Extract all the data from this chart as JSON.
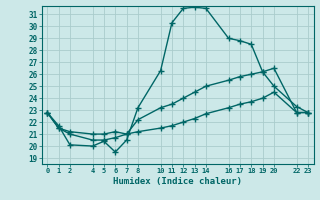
{
  "xlabel": "Humidex (Indice chaleur)",
  "bg_color": "#cce8e8",
  "grid_color": "#aacccc",
  "line_color": "#006666",
  "xlim": [
    -0.5,
    23.5
  ],
  "ylim": [
    18.5,
    31.7
  ],
  "yticks": [
    19,
    20,
    21,
    22,
    23,
    24,
    25,
    26,
    27,
    28,
    29,
    30,
    31
  ],
  "xticks": [
    0,
    1,
    2,
    4,
    5,
    6,
    7,
    8,
    10,
    11,
    12,
    13,
    14,
    16,
    17,
    18,
    19,
    20,
    22,
    23
  ],
  "xtick_labels": [
    "0",
    "1",
    "2",
    "4",
    "5",
    "6",
    "7",
    "8",
    "10",
    "11",
    "12",
    "13",
    "14",
    "16",
    "17",
    "18",
    "19",
    "20",
    "22",
    "23"
  ],
  "line1_x": [
    0,
    1,
    2,
    4,
    5,
    6,
    7,
    8,
    10,
    11,
    12,
    13,
    14,
    16,
    17,
    18,
    19,
    20,
    22,
    23
  ],
  "line1_y": [
    22.8,
    21.7,
    20.1,
    20.0,
    20.4,
    19.5,
    20.5,
    23.2,
    26.3,
    30.3,
    31.5,
    31.6,
    31.5,
    29.0,
    28.8,
    28.5,
    26.2,
    25.0,
    23.3,
    22.8
  ],
  "line2_x": [
    0,
    1,
    2,
    4,
    5,
    6,
    7,
    8,
    10,
    11,
    12,
    13,
    14,
    16,
    17,
    18,
    19,
    20,
    22,
    23
  ],
  "line2_y": [
    22.8,
    21.5,
    21.2,
    21.0,
    21.0,
    21.2,
    21.0,
    22.2,
    23.2,
    23.5,
    24.0,
    24.5,
    25.0,
    25.5,
    25.8,
    26.0,
    26.2,
    26.5,
    22.8,
    22.8
  ],
  "line3_x": [
    0,
    1,
    2,
    4,
    5,
    6,
    7,
    8,
    10,
    11,
    12,
    13,
    14,
    16,
    17,
    18,
    19,
    20,
    22,
    23
  ],
  "line3_y": [
    22.8,
    21.5,
    21.0,
    20.5,
    20.5,
    20.7,
    21.0,
    21.2,
    21.5,
    21.7,
    22.0,
    22.3,
    22.7,
    23.2,
    23.5,
    23.7,
    24.0,
    24.5,
    22.8,
    22.8
  ],
  "marker": "+",
  "markersize": 4,
  "linewidth": 1.0
}
